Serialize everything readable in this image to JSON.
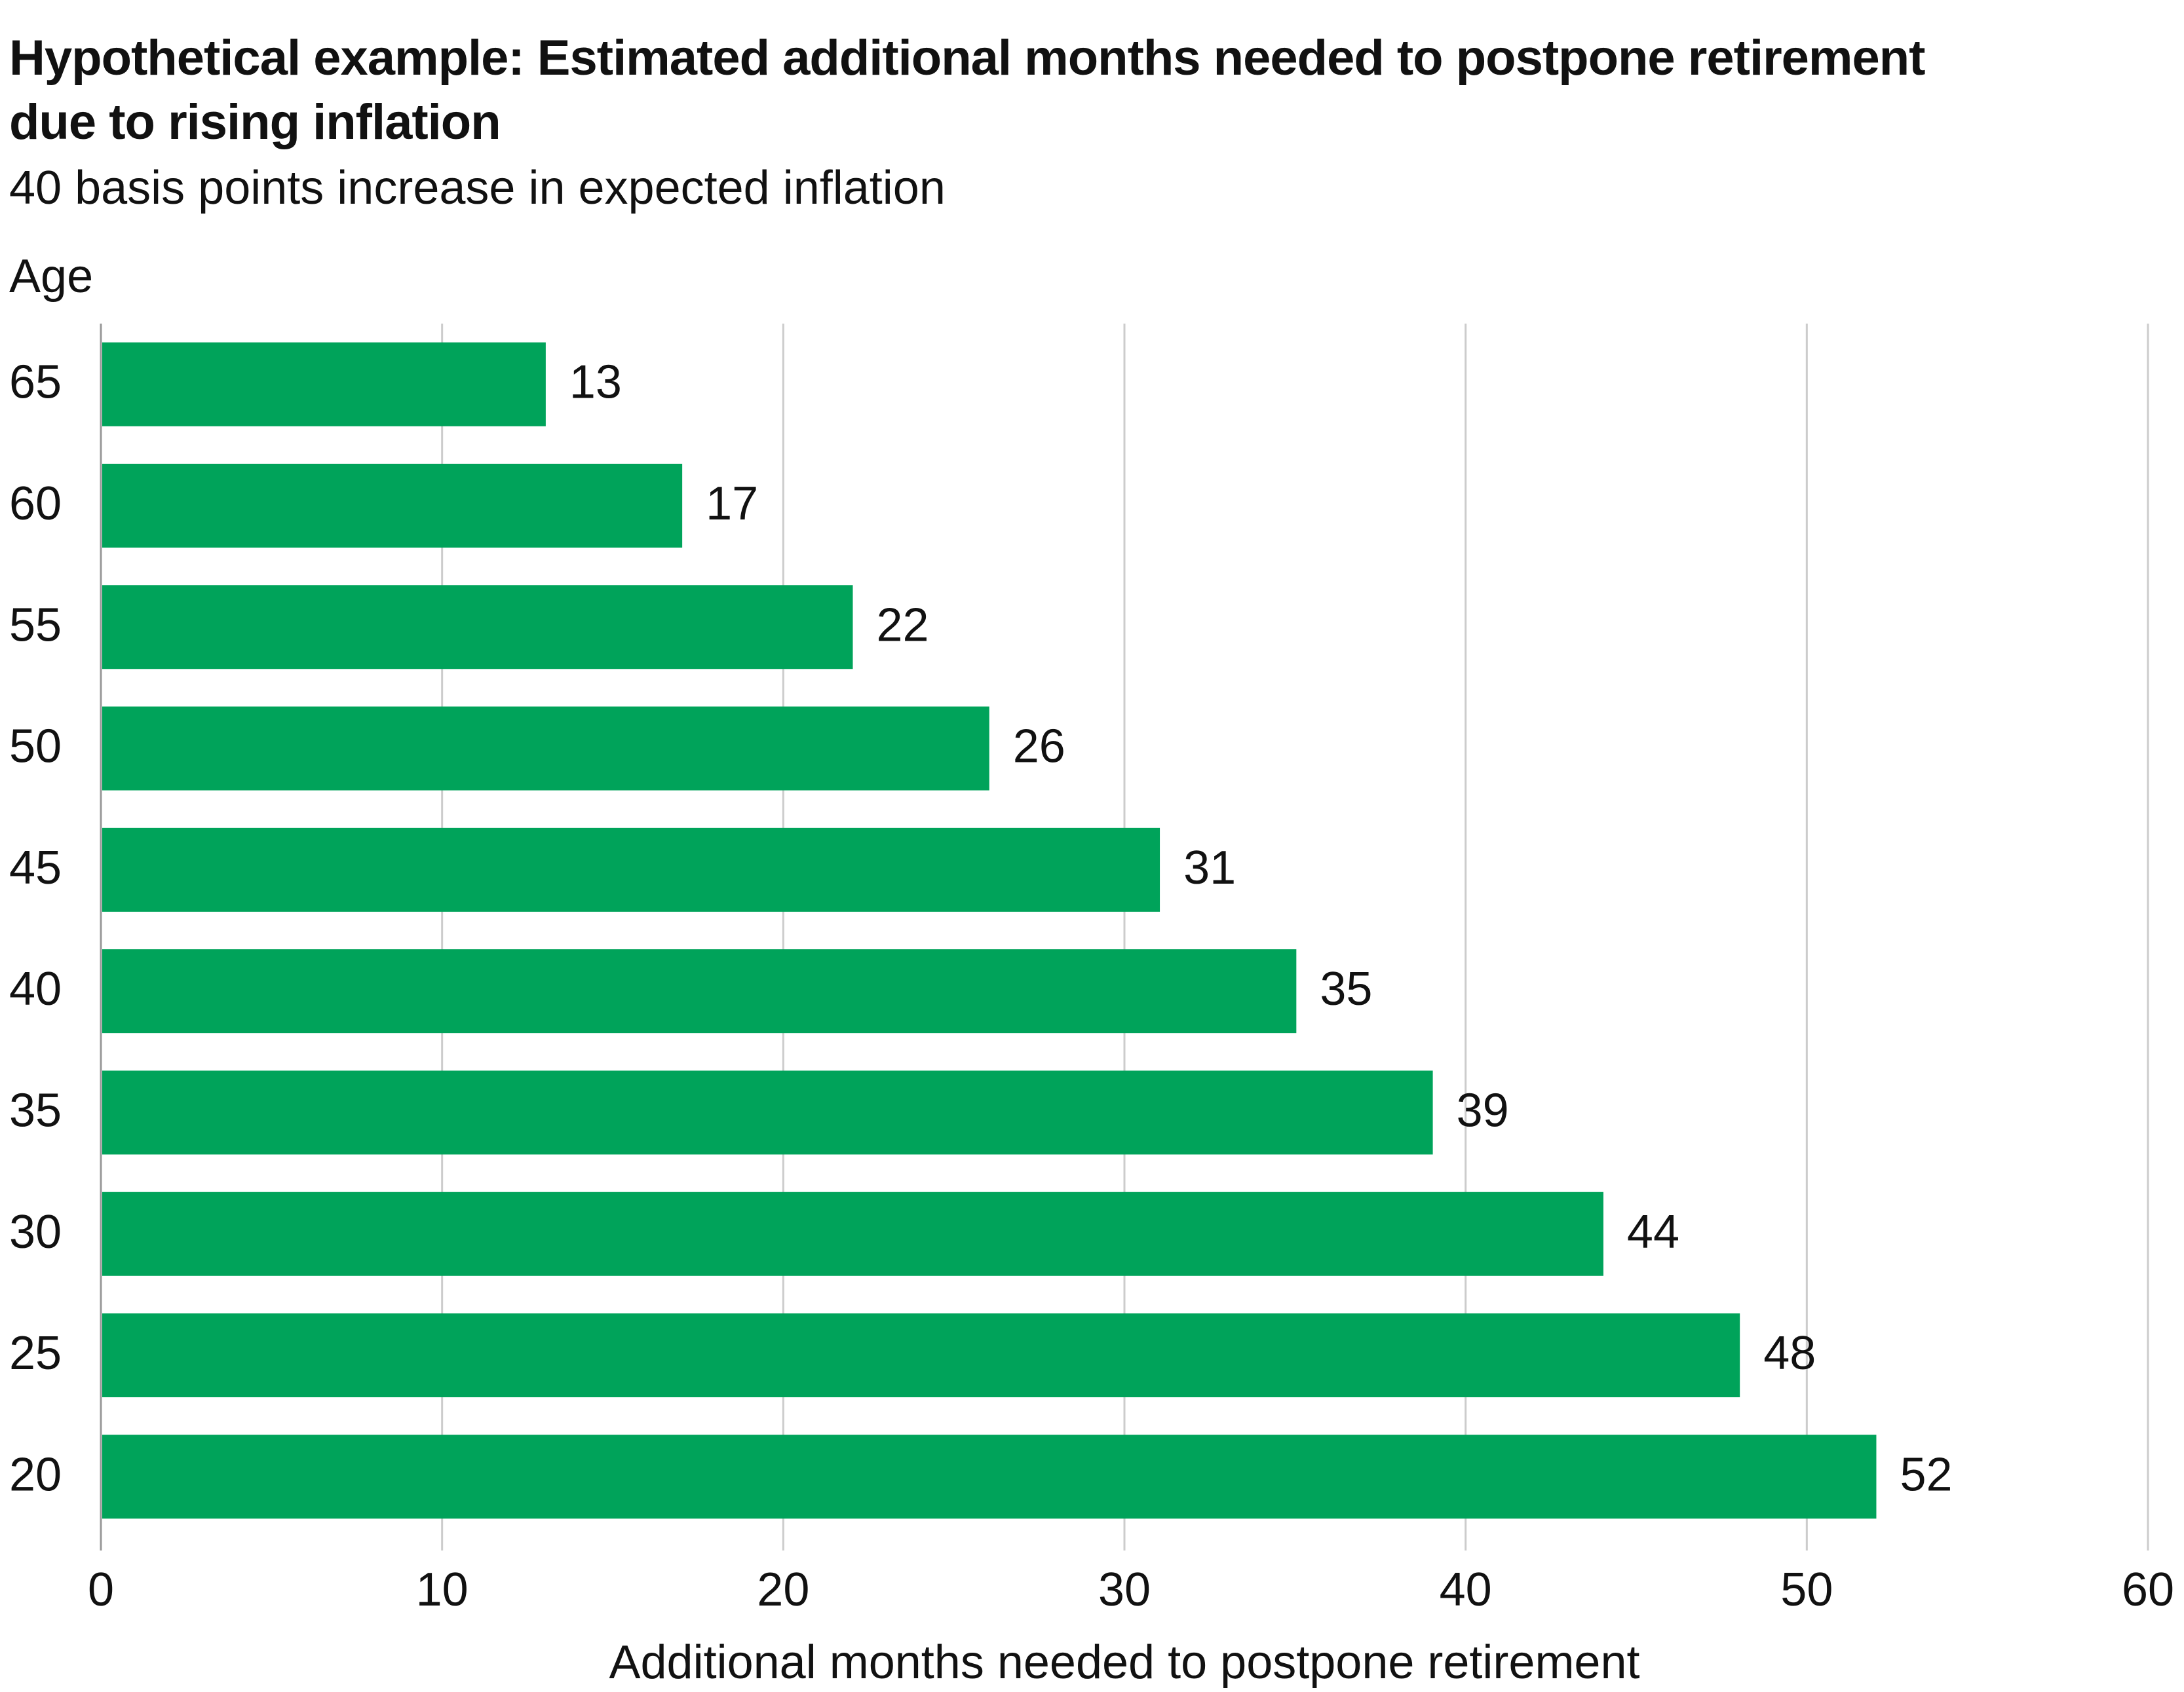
{
  "chart_data": {
    "type": "bar",
    "orientation": "horizontal",
    "title": "Hypothetical example: Estimated additional months needed to postpone retirement due to rising inflation",
    "subtitle": "40 basis points increase in expected inflation",
    "y_axis_label": "Age",
    "x_axis_label": "Additional months needed to postpone retirement",
    "categories": [
      "65",
      "60",
      "55",
      "50",
      "45",
      "40",
      "35",
      "30",
      "25",
      "20"
    ],
    "values": [
      13,
      17,
      22,
      26,
      31,
      35,
      39,
      44,
      48,
      52
    ],
    "color": "#00a35a",
    "xlim": [
      0,
      60
    ],
    "xticks": [
      0,
      10,
      20,
      30,
      40,
      50,
      60
    ],
    "grid": true
  }
}
